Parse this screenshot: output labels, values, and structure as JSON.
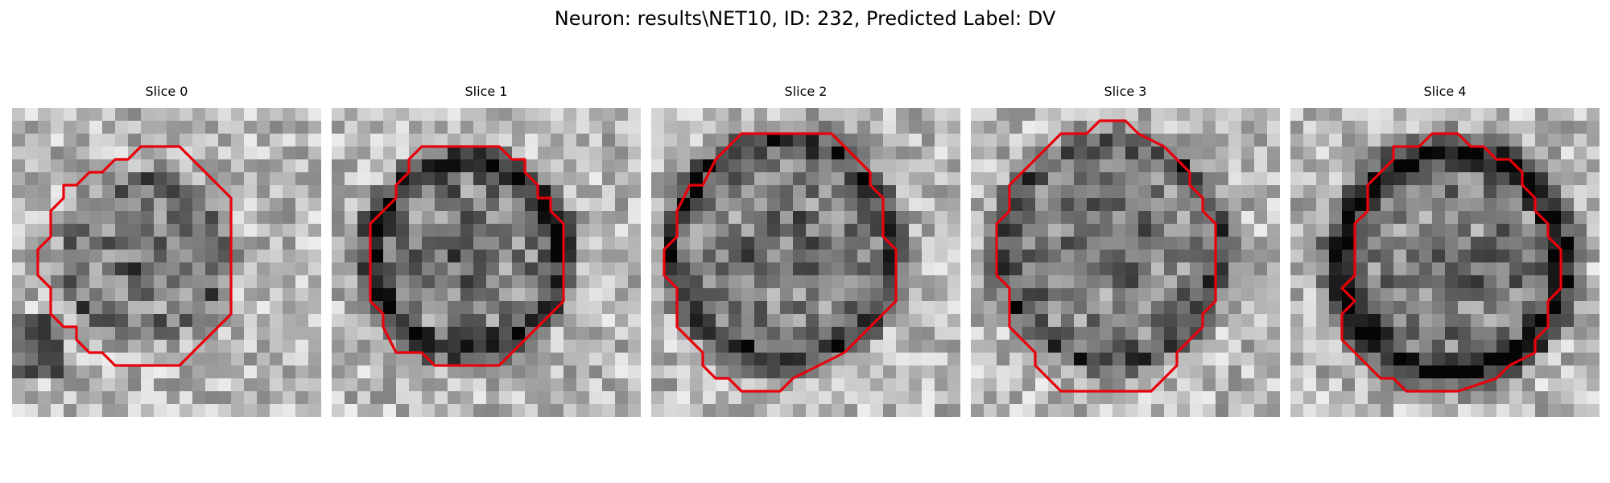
{
  "figure": {
    "title": "Neuron: results\\NET10, ID: 232, Predicted Label: DV"
  },
  "slices": [
    {
      "title": "Slice 0",
      "contour_cells": [
        [
          10,
          3
        ],
        [
          13,
          3
        ],
        [
          17,
          7
        ],
        [
          17,
          16
        ],
        [
          13,
          20
        ],
        [
          8,
          20
        ],
        [
          7,
          19
        ],
        [
          6,
          19
        ],
        [
          5,
          18
        ],
        [
          5,
          17
        ],
        [
          4,
          17
        ],
        [
          3,
          16
        ],
        [
          3,
          14
        ],
        [
          2,
          13
        ],
        [
          2,
          11
        ],
        [
          3,
          10
        ],
        [
          3,
          8
        ],
        [
          4,
          7
        ],
        [
          4,
          6
        ],
        [
          5,
          6
        ],
        [
          6,
          5
        ],
        [
          7,
          5
        ],
        [
          8,
          4
        ],
        [
          9,
          4
        ]
      ]
    },
    {
      "title": "Slice 1",
      "contour_cells": [
        [
          7,
          3
        ],
        [
          13,
          3
        ],
        [
          14,
          4
        ],
        [
          15,
          4
        ],
        [
          15,
          5
        ],
        [
          16,
          6
        ],
        [
          16,
          7
        ],
        [
          17,
          7
        ],
        [
          17,
          8
        ],
        [
          18,
          9
        ],
        [
          18,
          15
        ],
        [
          14,
          19
        ],
        [
          13,
          20
        ],
        [
          8,
          20
        ],
        [
          7,
          19
        ],
        [
          5,
          19
        ],
        [
          4,
          17
        ],
        [
          4,
          16
        ],
        [
          3,
          15
        ],
        [
          3,
          13
        ],
        [
          3,
          9
        ],
        [
          4,
          8
        ],
        [
          5,
          7
        ],
        [
          5,
          6
        ],
        [
          6,
          5
        ],
        [
          6,
          4
        ]
      ]
    },
    {
      "title": "Slice 2",
      "contour_cells": [
        [
          7,
          2
        ],
        [
          14,
          2
        ],
        [
          15,
          3
        ],
        [
          16,
          4
        ],
        [
          17,
          5
        ],
        [
          17,
          6
        ],
        [
          18,
          7
        ],
        [
          18,
          10
        ],
        [
          19,
          11
        ],
        [
          19,
          15
        ],
        [
          18,
          16
        ],
        [
          17,
          17
        ],
        [
          16,
          18
        ],
        [
          15,
          19
        ],
        [
          13,
          20
        ],
        [
          11,
          21
        ],
        [
          10,
          22
        ],
        [
          7,
          22
        ],
        [
          6,
          21
        ],
        [
          5,
          21
        ],
        [
          4,
          20
        ],
        [
          4,
          19
        ],
        [
          3,
          18
        ],
        [
          2,
          17
        ],
        [
          2,
          14
        ],
        [
          1,
          13
        ],
        [
          1,
          11
        ],
        [
          2,
          10
        ],
        [
          2,
          8
        ],
        [
          3,
          6
        ],
        [
          4,
          6
        ],
        [
          5,
          4
        ],
        [
          6,
          3
        ]
      ]
    },
    {
      "title": "Slice 3",
      "contour_cells": [
        [
          7,
          2
        ],
        [
          9,
          2
        ],
        [
          10,
          1
        ],
        [
          12,
          1
        ],
        [
          13,
          2
        ],
        [
          15,
          3
        ],
        [
          16,
          4
        ],
        [
          17,
          5
        ],
        [
          17,
          6
        ],
        [
          18,
          7
        ],
        [
          18,
          8
        ],
        [
          19,
          9
        ],
        [
          19,
          15
        ],
        [
          18,
          16
        ],
        [
          18,
          17
        ],
        [
          17,
          18
        ],
        [
          16,
          19
        ],
        [
          16,
          20
        ],
        [
          15,
          21
        ],
        [
          14,
          22
        ],
        [
          10,
          22
        ],
        [
          7,
          22
        ],
        [
          6,
          21
        ],
        [
          5,
          20
        ],
        [
          5,
          19
        ],
        [
          4,
          18
        ],
        [
          3,
          17
        ],
        [
          3,
          14
        ],
        [
          2,
          13
        ],
        [
          2,
          9
        ],
        [
          3,
          8
        ],
        [
          3,
          6
        ],
        [
          4,
          5
        ],
        [
          5,
          4
        ],
        [
          6,
          3
        ]
      ]
    },
    {
      "title": "Slice 4",
      "contour_cells": [
        [
          8,
          3
        ],
        [
          10,
          3
        ],
        [
          11,
          2
        ],
        [
          13,
          2
        ],
        [
          14,
          3
        ],
        [
          15,
          3
        ],
        [
          16,
          4
        ],
        [
          17,
          4
        ],
        [
          18,
          5
        ],
        [
          18,
          6
        ],
        [
          19,
          7
        ],
        [
          19,
          8
        ],
        [
          20,
          9
        ],
        [
          20,
          10
        ],
        [
          21,
          11
        ],
        [
          21,
          14
        ],
        [
          20,
          15
        ],
        [
          20,
          17
        ],
        [
          19,
          18
        ],
        [
          19,
          19
        ],
        [
          17,
          20
        ],
        [
          16,
          21
        ],
        [
          13,
          22
        ],
        [
          9,
          22
        ],
        [
          8,
          21
        ],
        [
          7,
          21
        ],
        [
          6,
          20
        ],
        [
          5,
          19
        ],
        [
          4,
          18
        ],
        [
          4,
          16
        ],
        [
          5,
          15
        ],
        [
          4,
          14
        ],
        [
          5,
          13
        ],
        [
          5,
          9
        ],
        [
          6,
          8
        ],
        [
          6,
          6
        ],
        [
          7,
          5
        ],
        [
          8,
          4
        ]
      ]
    }
  ],
  "contour_color": "#e8000b"
}
